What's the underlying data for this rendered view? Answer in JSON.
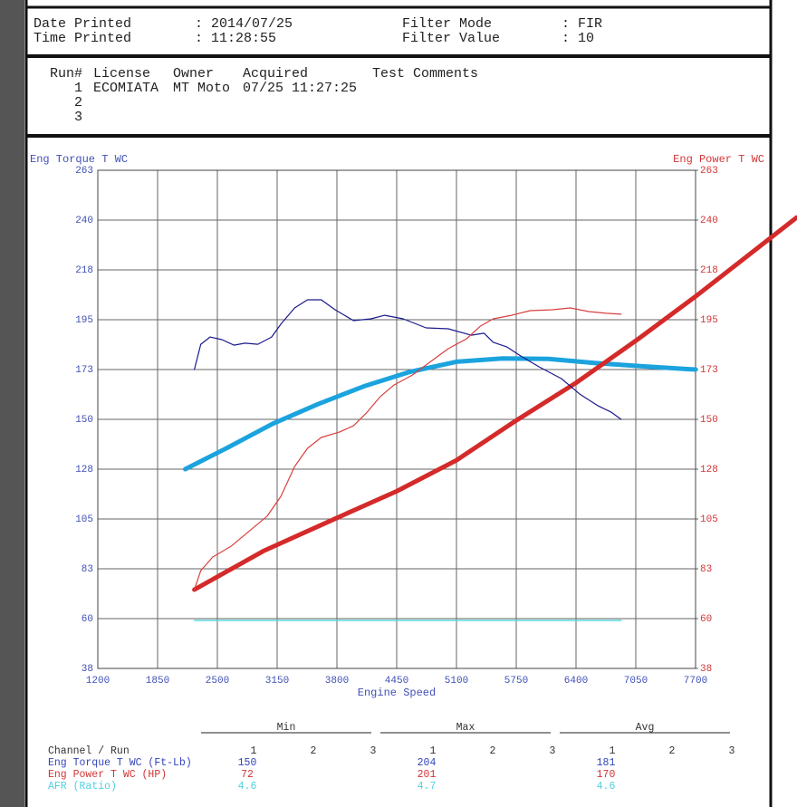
{
  "header": {
    "fields": [
      {
        "label": "Date Printed",
        "value": ": 2014/07/25"
      },
      {
        "label": "Time Printed",
        "value": ": 11:28:55"
      },
      {
        "label": "Filter Mode",
        "value": ": FIR"
      },
      {
        "label": "Filter Value",
        "value": ": 10"
      }
    ]
  },
  "runs": {
    "columns": [
      "Run#",
      "License",
      "Owner",
      "Acquired",
      "Test Comments"
    ],
    "rows": [
      [
        "1",
        "ECOMIATA",
        "MT Moto",
        "07/25 11:27:25"
      ],
      [
        "2"
      ],
      [
        "3"
      ]
    ]
  },
  "chart_data": {
    "type": "line",
    "y_label": "Eng Torque T WC",
    "y2_label": "Eng Power T WC",
    "x_label": "Engine Speed",
    "xlim": [
      1200,
      7700
    ],
    "xticks": [
      1200,
      1850,
      2500,
      3150,
      3800,
      4450,
      5100,
      5750,
      6400,
      7050,
      7700
    ],
    "ylim": [
      38,
      263
    ],
    "yticks": [
      38,
      {
        "value": 60.5,
        "label": "60"
      },
      83,
      {
        "value": 105.5,
        "label": "105"
      },
      128,
      {
        "value": 150.5,
        "label": "150"
      },
      173,
      {
        "value": 195.5,
        "label": "195"
      },
      218,
      {
        "value": 240.5,
        "label": "240"
      },
      263
    ],
    "y2lim": [
      38,
      263
    ],
    "y2ticks": [
      38,
      {
        "value": 60.5,
        "label": "60"
      },
      83,
      {
        "value": 105.5,
        "label": "105"
      },
      128,
      {
        "value": 150.5,
        "label": "150"
      },
      173,
      {
        "value": 195.5,
        "label": "195"
      },
      218,
      {
        "value": 240.5,
        "label": "240"
      },
      263
    ],
    "grid": true,
    "y_color": "#4050b5",
    "y2_color": "#d03535",
    "series": [
      {
        "color": "#1ba3de",
        "line_width": 5,
        "x": [
          2150,
          2600,
          3100,
          3600,
          4100,
          4600,
          5100,
          5600,
          6100,
          6600,
          7100,
          7700
        ],
        "values": [
          128,
          137.5,
          148.5,
          157.5,
          165.5,
          172,
          176.5,
          178,
          177.8,
          176,
          174.5,
          173
        ]
      },
      {
        "color": "#d42a2a",
        "line_width": 5,
        "axis": "y2",
        "x": [
          2250,
          3000,
          3800,
          4450,
          5100,
          5750,
          6400,
          7050,
          7700,
          8800
        ],
        "values": [
          73.6,
          91,
          106,
          118,
          132,
          150,
          167,
          186,
          206,
          241.7
        ]
      },
      {
        "color": "#1a1a8c",
        "line_width": 1.2,
        "x": [
          2250,
          2320,
          2420,
          2550,
          2680,
          2800,
          2940,
          3090,
          3190,
          3340,
          3480,
          3630,
          3780,
          3980,
          4170,
          4320,
          4520,
          4770,
          5010,
          5260,
          5400,
          5500,
          5650,
          5800,
          6000,
          6240,
          6440,
          6640,
          6780,
          6890
        ],
        "values": [
          173,
          184.4,
          187.7,
          186.5,
          184,
          184.9,
          184.4,
          187.7,
          193.5,
          200.8,
          204.5,
          204.5,
          200,
          195.1,
          195.9,
          197.5,
          195.9,
          191.8,
          191.4,
          188.5,
          189.4,
          185.3,
          183.2,
          179.1,
          174.2,
          168.9,
          161.9,
          156.6,
          153.8,
          150.5
        ]
      },
      {
        "color": "#d84040",
        "line_width": 1.2,
        "axis": "y2",
        "x": [
          2250,
          2320,
          2450,
          2650,
          2840,
          3040,
          3190,
          3340,
          3480,
          3630,
          3830,
          3980,
          4130,
          4270,
          4420,
          4620,
          4810,
          5010,
          5210,
          5360,
          5500,
          5700,
          5900,
          6140,
          6340,
          6540,
          6730,
          6890
        ],
        "values": [
          73.6,
          82.2,
          88.3,
          93.2,
          99.8,
          106.7,
          115.7,
          129.2,
          137.4,
          142.3,
          144.8,
          147.6,
          153.8,
          160.7,
          166,
          170.5,
          176.3,
          182.4,
          186.9,
          192.6,
          195.9,
          197.5,
          199.6,
          200,
          200.8,
          199.2,
          198.4,
          198
        ]
      },
      {
        "color": "#5fd8e0",
        "line_width": 1.5,
        "x": [
          2250,
          6890
        ],
        "values": [
          59.7,
          59.7
        ]
      }
    ]
  },
  "summary": {
    "groups": [
      "Min",
      "Max",
      "Avg"
    ],
    "runs": [
      "1",
      "2",
      "3"
    ],
    "channel_label": "Channel / Run",
    "rows": [
      {
        "name": "Eng Torque T WC (Ft-Lb)",
        "color": "#3344bb",
        "values": [
          150,
          204,
          181
        ]
      },
      {
        "name": "Eng Power T WC (HP)",
        "color": "#d03535",
        "values": [
          72,
          201,
          170
        ]
      },
      {
        "name": "AFR (Ratio)",
        "color": "#4fd0e0",
        "values": [
          4.6,
          4.7,
          4.6
        ]
      }
    ]
  }
}
